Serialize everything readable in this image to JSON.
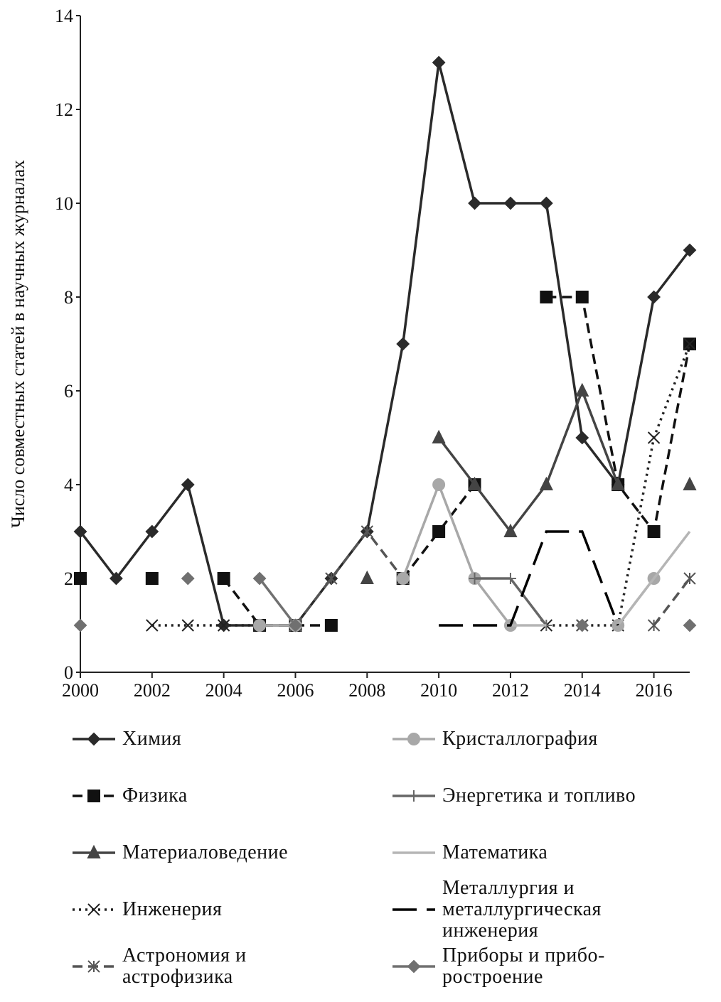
{
  "chart_data": {
    "type": "line",
    "y_label": "Число совместных статей в научных журналах",
    "x": [
      2000,
      2001,
      2002,
      2003,
      2004,
      2005,
      2006,
      2007,
      2008,
      2009,
      2010,
      2011,
      2012,
      2013,
      2014,
      2015,
      2016,
      2017
    ],
    "xlim": [
      2000,
      2017
    ],
    "xticks": [
      2000,
      2002,
      2004,
      2006,
      2008,
      2010,
      2012,
      2014,
      2016
    ],
    "ylim": [
      0,
      14
    ],
    "yticks": [
      0,
      2,
      4,
      6,
      8,
      10,
      12,
      14
    ],
    "series": [
      {
        "name": "Химия",
        "color": "#2a2a2a",
        "dash": "solid",
        "marker": "diamond",
        "values": [
          3,
          2,
          3,
          4,
          1,
          1,
          1,
          2,
          3,
          7,
          13,
          10,
          10,
          10,
          5,
          4,
          8,
          9
        ]
      },
      {
        "name": "Физика",
        "color": "#111111",
        "dash": "dashed",
        "marker": "square",
        "values": [
          2,
          null,
          2,
          null,
          2,
          1,
          1,
          1,
          null,
          2,
          3,
          4,
          null,
          8,
          8,
          4,
          3,
          7
        ]
      },
      {
        "name": "Материаловедение",
        "color": "#444444",
        "dash": "solid",
        "marker": "triangle",
        "values": [
          null,
          null,
          null,
          null,
          null,
          null,
          null,
          null,
          2,
          null,
          5,
          4,
          3,
          4,
          6,
          4,
          null,
          4
        ]
      },
      {
        "name": "Инженерия",
        "color": "#222222",
        "dash": "dotted",
        "marker": "x",
        "values": [
          null,
          null,
          1,
          1,
          1,
          1,
          null,
          null,
          null,
          null,
          null,
          null,
          null,
          1,
          1,
          1,
          5,
          7
        ]
      },
      {
        "name": "Астрономия и астрофизика",
        "color": "#555555",
        "dash": "dashed",
        "marker": "star",
        "values": [
          null,
          null,
          null,
          null,
          null,
          null,
          1,
          2,
          3,
          2,
          null,
          null,
          null,
          null,
          1,
          null,
          1,
          2
        ]
      },
      {
        "name": "Кристаллография",
        "color": "#a8a8a8",
        "dash": "solid",
        "marker": "circle",
        "values": [
          null,
          null,
          null,
          null,
          null,
          1,
          1,
          null,
          null,
          2,
          4,
          2,
          1,
          null,
          null,
          1,
          2,
          null
        ]
      },
      {
        "name": "Энергетика и топливо",
        "color": "#666666",
        "dash": "solid",
        "marker": "plus",
        "values": [
          null,
          null,
          null,
          null,
          null,
          null,
          null,
          null,
          null,
          null,
          null,
          2,
          2,
          1,
          null,
          null,
          null,
          null
        ]
      },
      {
        "name": "Математика",
        "color": "#b5b5b5",
        "dash": "solid",
        "marker": "none",
        "values": [
          null,
          null,
          null,
          null,
          null,
          null,
          null,
          null,
          null,
          null,
          null,
          null,
          1,
          1,
          null,
          1,
          2,
          3
        ]
      },
      {
        "name": "Металлургия и металлургическая инженерия",
        "color": "#000000",
        "dash": "longdash",
        "marker": "none",
        "values": [
          null,
          null,
          null,
          null,
          null,
          null,
          null,
          null,
          null,
          null,
          1,
          1,
          1,
          3,
          3,
          1,
          null,
          null
        ]
      },
      {
        "name": "Приборы и прибо-ростроение",
        "color": "#707070",
        "dash": "solid",
        "marker": "diamond",
        "values": [
          1,
          null,
          null,
          2,
          null,
          2,
          1,
          null,
          null,
          null,
          null,
          null,
          null,
          null,
          1,
          null,
          null,
          1
        ]
      }
    ]
  }
}
